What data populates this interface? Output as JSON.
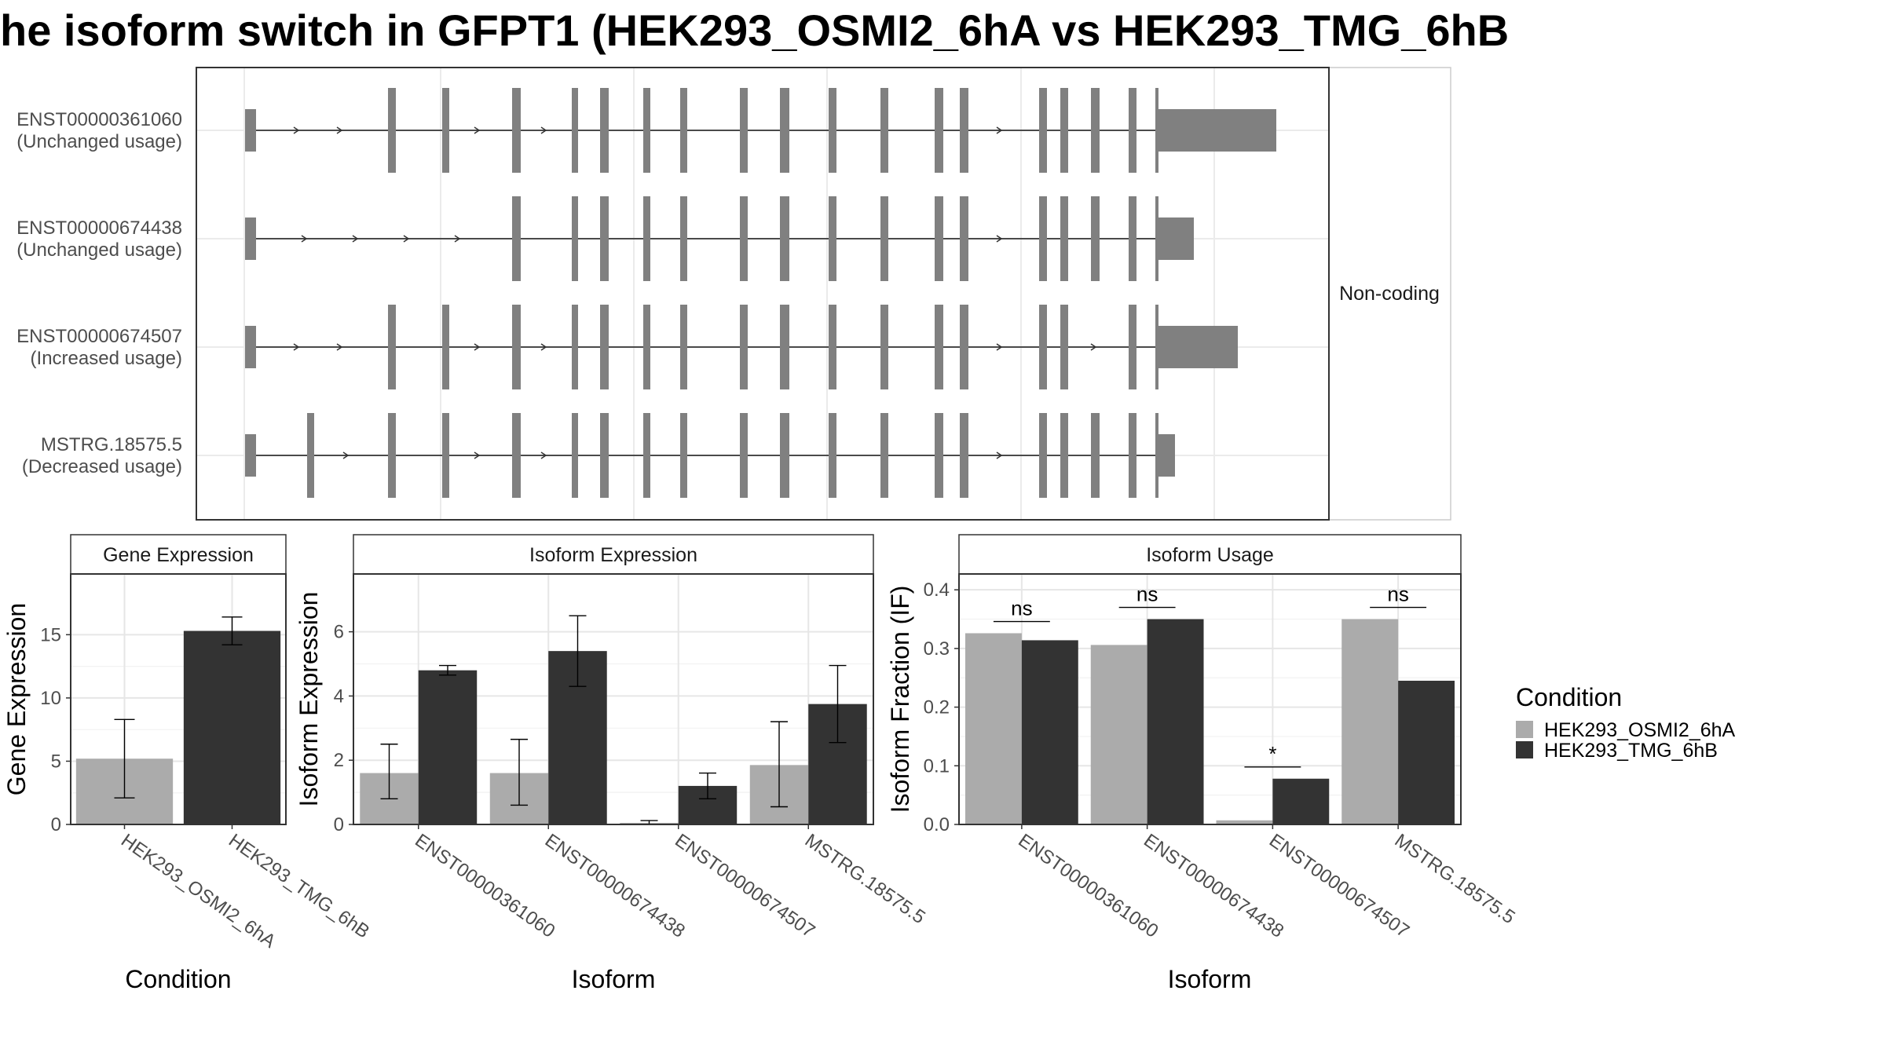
{
  "title": "he isoform switch in GFPT1 (HEK293_OSMI2_6hA vs HEK293_TMG_6hB",
  "colors": {
    "condition_a": "#ababab",
    "condition_b": "#333333",
    "exon": "#808080"
  },
  "chart_data": [
    {
      "type": "gene-structure",
      "facet_label": "Non-coding",
      "transcripts": [
        {
          "id": "ENST00000361060",
          "usage": "(Unchanged usage)"
        },
        {
          "id": "ENST00000674438",
          "usage": "(Unchanged usage)"
        },
        {
          "id": "ENST00000674507",
          "usage": "(Increased usage)"
        },
        {
          "id": "MSTRG.18575.5",
          "usage": "(Decreased usage)"
        }
      ]
    },
    {
      "type": "bar",
      "title": "Gene Expression",
      "xlabel": "Condition",
      "ylabel": "Gene Expression",
      "ylim": [
        0,
        19.8
      ],
      "yticks": [
        0,
        5,
        10,
        15
      ],
      "categories": [
        "HEK293_OSMI2_6hA",
        "HEK293_TMG_6hB"
      ],
      "values": [
        5.2,
        15.3
      ],
      "error_low": [
        2.1,
        14.2
      ],
      "error_high": [
        8.3,
        16.4
      ]
    },
    {
      "type": "bar",
      "title": "Isoform Expression",
      "xlabel": "Isoform",
      "ylabel": "Isoform Expression",
      "ylim": [
        0,
        7.8
      ],
      "yticks": [
        0,
        2,
        4,
        6
      ],
      "categories": [
        "ENST00000361060",
        "ENST00000674438",
        "ENST00000674507",
        "MSTRG.18575.5"
      ],
      "series": [
        {
          "values": [
            1.6,
            1.6,
            0.05,
            1.85
          ],
          "error_low": [
            0.8,
            0.6,
            0.0,
            0.55
          ],
          "error_high": [
            2.5,
            2.65,
            0.12,
            3.2
          ]
        },
        {
          "values": [
            4.8,
            5.4,
            1.2,
            3.75
          ],
          "error_low": [
            4.65,
            4.3,
            0.8,
            2.55
          ],
          "error_high": [
            4.95,
            6.5,
            1.6,
            4.95
          ]
        }
      ]
    },
    {
      "type": "bar",
      "title": "Isoform Usage",
      "xlabel": "Isoform",
      "ylabel": "Isoform Fraction (IF)",
      "ylim": [
        0,
        0.427
      ],
      "yticks": [
        0.0,
        0.1,
        0.2,
        0.3,
        0.4
      ],
      "ytick_labels": [
        "0.0",
        "0.1",
        "0.2",
        "0.3",
        "0.4"
      ],
      "categories": [
        "ENST00000361060",
        "ENST00000674438",
        "ENST00000674507",
        "MSTRG.18575.5"
      ],
      "series": [
        {
          "values": [
            0.326,
            0.306,
            0.007,
            0.35
          ]
        },
        {
          "values": [
            0.314,
            0.35,
            0.078,
            0.245
          ]
        }
      ],
      "significance": [
        "ns",
        "ns",
        "*",
        "ns"
      ]
    }
  ],
  "legend": {
    "title": "Condition",
    "items": [
      "HEK293_OSMI2_6hA",
      "HEK293_TMG_6hB"
    ]
  }
}
